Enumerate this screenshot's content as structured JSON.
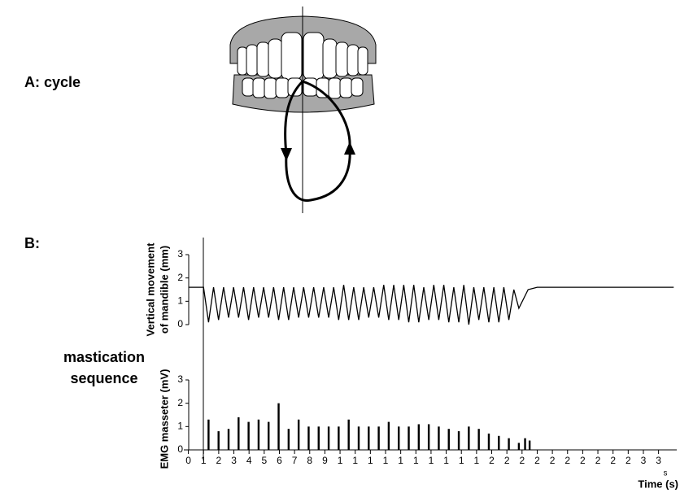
{
  "labels": {
    "a": "A:  cycle",
    "b": "B:",
    "mastication": [
      "mastication",
      "sequence"
    ]
  },
  "chart_data": [
    {
      "type": "line",
      "y_label": [
        "Vertical movement",
        "of mandible (mm)"
      ],
      "xlim": [
        -0.3,
        32.2
      ],
      "ylim": [
        0,
        3
      ],
      "yticks": [
        0,
        1,
        2,
        3
      ],
      "color": "#000000",
      "x": [
        0,
        1.0,
        1.33,
        1.66,
        1.99,
        2.32,
        2.65,
        2.98,
        3.31,
        3.64,
        3.97,
        4.3,
        4.63,
        4.96,
        5.29,
        5.62,
        5.95,
        6.28,
        6.61,
        6.94,
        7.27,
        7.6,
        7.93,
        8.26,
        8.59,
        8.92,
        9.25,
        9.58,
        9.91,
        10.24,
        10.57,
        10.9,
        11.23,
        11.56,
        11.89,
        12.22,
        12.55,
        12.88,
        13.21,
        13.54,
        13.87,
        14.2,
        14.53,
        14.86,
        15.19,
        15.52,
        15.85,
        16.18,
        16.51,
        16.84,
        17.17,
        17.5,
        17.83,
        18.16,
        18.49,
        18.82,
        19.15,
        19.48,
        19.81,
        20.14,
        20.47,
        20.8,
        21.13,
        21.46,
        21.79,
        22.4,
        23.0,
        32.0
      ],
      "values": [
        1.6,
        1.6,
        0.1,
        1.6,
        0.2,
        1.6,
        0.3,
        1.6,
        0.3,
        1.6,
        0.2,
        1.6,
        0.3,
        1.6,
        0.3,
        1.6,
        0.2,
        1.6,
        0.2,
        1.6,
        0.3,
        1.6,
        0.3,
        1.6,
        0.3,
        1.6,
        0.3,
        1.6,
        0.2,
        1.7,
        0.2,
        1.6,
        0.2,
        1.6,
        0.3,
        1.6,
        0.3,
        1.7,
        0.2,
        1.7,
        0.2,
        1.7,
        0.1,
        1.7,
        0.1,
        1.6,
        0.2,
        1.7,
        0.2,
        1.7,
        0.1,
        1.6,
        0.1,
        1.7,
        0.0,
        1.6,
        0.2,
        1.6,
        0.1,
        1.6,
        0.1,
        1.6,
        0.2,
        1.5,
        0.7,
        1.5,
        1.6,
        1.6
      ]
    },
    {
      "type": "spike",
      "y_label": [
        "EMG masseter (mV)"
      ],
      "x_label": "Time (s)",
      "annotations": [
        "s"
      ],
      "xlim": [
        -0.3,
        32.2
      ],
      "ylim": [
        0,
        3
      ],
      "yticks": [
        0,
        1,
        2,
        3
      ],
      "color": "#000000",
      "xticks": [
        0,
        1,
        2,
        3,
        4,
        5,
        6,
        7,
        8,
        9,
        {
          "value": 10,
          "label": "1"
        },
        {
          "value": 11,
          "label": "1"
        },
        {
          "value": 12,
          "label": "1"
        },
        {
          "value": 13,
          "label": "1"
        },
        {
          "value": 14,
          "label": "1"
        },
        {
          "value": 15,
          "label": "1"
        },
        {
          "value": 16,
          "label": "1"
        },
        {
          "value": 17,
          "label": "1"
        },
        {
          "value": 18,
          "label": "1"
        },
        {
          "value": 19,
          "label": "1"
        },
        {
          "value": 20,
          "label": "2"
        },
        {
          "value": 21,
          "label": "2"
        },
        {
          "value": 22,
          "label": "2"
        },
        {
          "value": 23,
          "label": "2"
        },
        {
          "value": 24,
          "label": "2"
        },
        {
          "value": 25,
          "label": "2"
        },
        {
          "value": 26,
          "label": "2"
        },
        {
          "value": 27,
          "label": "2"
        },
        {
          "value": 28,
          "label": "2"
        },
        {
          "value": 29,
          "label": "2"
        },
        {
          "value": 30,
          "label": "3"
        },
        {
          "value": 31,
          "label": "3"
        }
      ],
      "x": [
        1.33,
        1.99,
        2.65,
        3.31,
        3.97,
        4.63,
        5.29,
        5.95,
        6.61,
        7.27,
        7.93,
        8.59,
        9.25,
        9.91,
        10.57,
        11.23,
        11.89,
        12.55,
        13.21,
        13.87,
        14.53,
        15.19,
        15.85,
        16.51,
        17.17,
        17.83,
        18.49,
        19.15,
        19.81,
        20.47,
        21.13,
        21.79,
        22.2,
        22.5
      ],
      "values": [
        1.3,
        0.8,
        0.9,
        1.4,
        1.2,
        1.3,
        1.2,
        2.0,
        0.9,
        1.3,
        1.0,
        1.0,
        1.0,
        1.0,
        1.3,
        1.0,
        1.0,
        1.0,
        1.2,
        1.0,
        1.0,
        1.1,
        1.1,
        1.0,
        0.9,
        0.8,
        1.0,
        0.9,
        0.7,
        0.6,
        0.5,
        0.3,
        0.5,
        0.4
      ]
    }
  ]
}
